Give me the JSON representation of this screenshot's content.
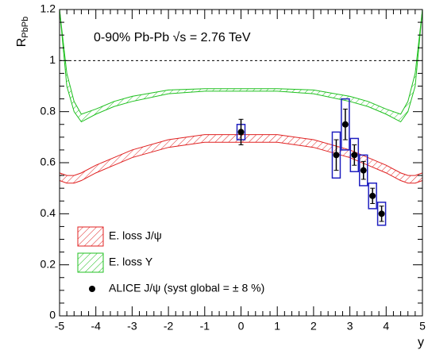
{
  "chart_data": {
    "type": "band",
    "y_label": {
      "main": "R",
      "sub": "PbPb"
    },
    "x_label": "y",
    "annotation": "0-90% Pb-Pb √s = 2.76 TeV",
    "xlim": [
      -5,
      5
    ],
    "xticks": [
      -5,
      -4,
      -3,
      -2,
      -1,
      0,
      1,
      2,
      3,
      4,
      5
    ],
    "ylim": [
      0,
      1.2
    ],
    "yticks": [
      0,
      0.2,
      0.4,
      0.6,
      0.8,
      1,
      1.2
    ],
    "reference_line": 1,
    "series": [
      {
        "name": "E. loss J/ψ",
        "kind": "band",
        "color": "#e02020",
        "x": [
          -5,
          -4.8,
          -4.6,
          -4.4,
          -4,
          -3.5,
          -3,
          -2,
          -1,
          0,
          1,
          2,
          3,
          3.5,
          4,
          4.4,
          4.6,
          4.8,
          5
        ],
        "lower": [
          0.53,
          0.52,
          0.52,
          0.53,
          0.56,
          0.59,
          0.62,
          0.66,
          0.68,
          0.68,
          0.68,
          0.66,
          0.62,
          0.59,
          0.56,
          0.53,
          0.52,
          0.52,
          0.53
        ],
        "upper": [
          0.56,
          0.55,
          0.55,
          0.56,
          0.59,
          0.62,
          0.65,
          0.69,
          0.71,
          0.71,
          0.71,
          0.69,
          0.65,
          0.62,
          0.59,
          0.56,
          0.55,
          0.55,
          0.56
        ]
      },
      {
        "name": "E. loss Υ",
        "kind": "band",
        "color": "#20c020",
        "x": [
          -5,
          -4.8,
          -4.6,
          -4.4,
          -4,
          -3.5,
          -3,
          -2,
          -1,
          0,
          1,
          2,
          3,
          3.5,
          4,
          4.4,
          4.6,
          4.8,
          5
        ],
        "lower": [
          1.2,
          0.9,
          0.8,
          0.76,
          0.79,
          0.82,
          0.84,
          0.87,
          0.88,
          0.88,
          0.88,
          0.87,
          0.84,
          0.82,
          0.79,
          0.76,
          0.8,
          0.9,
          1.2
        ],
        "upper": [
          1.2,
          0.95,
          0.84,
          0.79,
          0.81,
          0.84,
          0.86,
          0.885,
          0.89,
          0.89,
          0.89,
          0.885,
          0.86,
          0.84,
          0.81,
          0.79,
          0.84,
          0.95,
          1.2
        ]
      },
      {
        "name": "ALICE J/ψ (syst global = ± 8 %)",
        "kind": "points",
        "color": "#000000",
        "box_color": "#2020c0",
        "x": [
          0,
          2.625,
          2.875,
          3.125,
          3.375,
          3.625,
          3.875
        ],
        "values": [
          0.72,
          0.63,
          0.75,
          0.63,
          0.57,
          0.47,
          0.4
        ],
        "stat": [
          0.05,
          0.06,
          0.06,
          0.04,
          0.035,
          0.03,
          0.03
        ],
        "syst": [
          0.03,
          0.09,
          0.1,
          0.065,
          0.06,
          0.05,
          0.045
        ]
      }
    ]
  }
}
